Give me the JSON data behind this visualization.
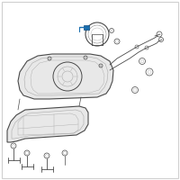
{
  "bg_color": "#ffffff",
  "border_color": "#d0d0d0",
  "line_color": "#4a4a4a",
  "light_color": "#888888",
  "very_light": "#aaaaaa",
  "fill_light": "#f0f0f0",
  "blue_color": "#1a6faf",
  "tank_fill": "#e8e8e8"
}
